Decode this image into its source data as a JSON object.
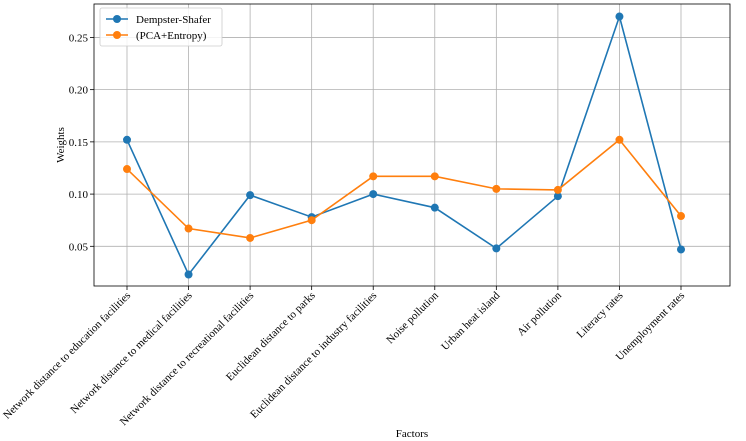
{
  "chart_data": {
    "type": "line",
    "title": "",
    "xlabel": "Factors",
    "ylabel": "Weights",
    "categories": [
      "Network distance to education facilities",
      "Network distance to medical facilities",
      "Network distance to recreational facilities",
      "Euclidean distance to parks",
      "Euclidean distance to industry facilities",
      "Noise pollution",
      "Urban heat island",
      "Air pollution",
      "Literacy rates",
      "Unemployment rates"
    ],
    "series": [
      {
        "name": "Dempster-Shafer",
        "color": "#1f77b4",
        "values": [
          0.152,
          0.023,
          0.099,
          0.078,
          0.1,
          0.087,
          0.048,
          0.098,
          0.27,
          0.047
        ]
      },
      {
        "name": "(PCA+Entropy)",
        "color": "#ff7f0e",
        "values": [
          0.124,
          0.067,
          0.058,
          0.075,
          0.117,
          0.117,
          0.105,
          0.104,
          0.152,
          0.079
        ]
      }
    ],
    "ylim": [
      0.012,
      0.282
    ],
    "yticks": [
      "0.05",
      "0.10",
      "0.15",
      "0.20",
      "0.25"
    ],
    "grid": true,
    "legend_position": "top-left"
  }
}
